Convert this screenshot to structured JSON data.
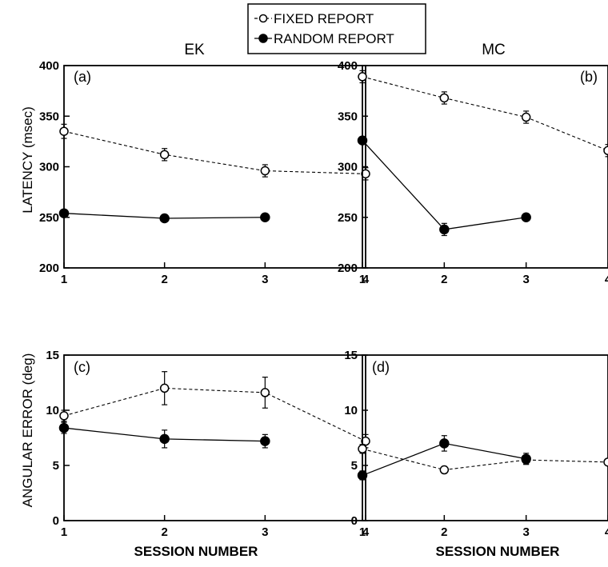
{
  "legend": {
    "fixed_label": "FIXED REPORT",
    "random_label": "RANDOM REPORT"
  },
  "chart_data": [
    {
      "type": "line",
      "panel": "(a)",
      "subject": "EK",
      "ylabel": "LATENCY (msec)",
      "xlabel": "",
      "ylim": [
        200,
        400
      ],
      "yticks": [
        200,
        250,
        300,
        350,
        400
      ],
      "xticks": [
        1,
        2,
        3,
        4
      ],
      "series": [
        {
          "name": "FIXED REPORT",
          "style": "dashed-open",
          "x": [
            1,
            2,
            3,
            4
          ],
          "y": [
            335,
            312,
            296,
            293
          ],
          "err": [
            7,
            6,
            6,
            6
          ]
        },
        {
          "name": "RANDOM REPORT",
          "style": "solid-filled",
          "x": [
            1,
            2,
            3
          ],
          "y": [
            254,
            249,
            250
          ],
          "err": [
            0,
            0,
            0
          ]
        }
      ]
    },
    {
      "type": "line",
      "panel": "(b)",
      "subject": "MC",
      "ylabel": "",
      "xlabel": "",
      "ylim": [
        200,
        400
      ],
      "yticks": [
        200,
        250,
        300,
        350,
        400
      ],
      "xticks": [
        1,
        2,
        3,
        4
      ],
      "series": [
        {
          "name": "FIXED REPORT",
          "style": "dashed-open",
          "x": [
            1,
            2,
            3,
            4
          ],
          "y": [
            389,
            368,
            349,
            316
          ],
          "err": [
            6,
            6,
            6,
            6
          ]
        },
        {
          "name": "RANDOM REPORT",
          "style": "solid-filled",
          "x": [
            1,
            2,
            3
          ],
          "y": [
            326,
            238,
            250
          ],
          "err": [
            0,
            6,
            0
          ]
        }
      ]
    },
    {
      "type": "line",
      "panel": "(c)",
      "subject": "",
      "ylabel": "ANGULAR ERROR (deg)",
      "xlabel": "SESSION NUMBER",
      "ylim": [
        0,
        15
      ],
      "yticks": [
        0,
        5,
        10,
        15
      ],
      "xticks": [
        1,
        2,
        3,
        4
      ],
      "series": [
        {
          "name": "FIXED REPORT",
          "style": "dashed-open",
          "x": [
            1,
            2,
            3,
            4
          ],
          "y": [
            9.5,
            12.0,
            11.6,
            7.2
          ],
          "err": [
            0.5,
            1.5,
            1.4,
            0.6
          ]
        },
        {
          "name": "RANDOM REPORT",
          "style": "solid-filled",
          "x": [
            1,
            2,
            3
          ],
          "y": [
            8.4,
            7.4,
            7.2
          ],
          "err": [
            0.5,
            0.8,
            0.6
          ]
        }
      ]
    },
    {
      "type": "line",
      "panel": "(d)",
      "subject": "",
      "ylabel": "",
      "xlabel": "SESSION NUMBER",
      "ylim": [
        0,
        15
      ],
      "yticks": [
        0,
        5,
        10,
        15
      ],
      "xticks": [
        1,
        2,
        3,
        4
      ],
      "series": [
        {
          "name": "FIXED REPORT",
          "style": "dashed-open",
          "x": [
            1,
            2,
            3,
            4
          ],
          "y": [
            6.5,
            4.6,
            5.5,
            5.3
          ],
          "err": [
            0.4,
            0.3,
            0.4,
            0.3
          ]
        },
        {
          "name": "RANDOM REPORT",
          "style": "solid-filled",
          "x": [
            1,
            2,
            3
          ],
          "y": [
            4.1,
            7.0,
            5.6
          ],
          "err": [
            0.4,
            0.7,
            0.5
          ]
        }
      ]
    }
  ]
}
